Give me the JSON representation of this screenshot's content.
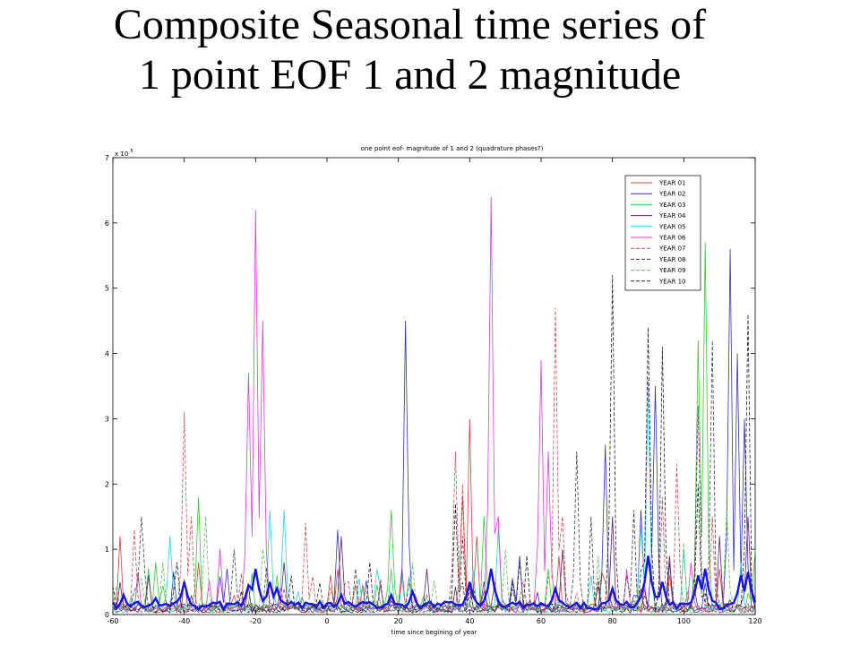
{
  "slide": {
    "title_line1": "Composite Seasonal time series of",
    "title_line2": "1 point EOF 1 and 2 magnitude"
  },
  "chart_data": {
    "type": "line",
    "title": "one point eof- magnitude of 1 and 2 (quadrature phases?)",
    "xlabel": "time since begining of year",
    "ylabel": "",
    "y_multiplier_label": "x 10",
    "y_multiplier_exponent": "5",
    "xlim": [
      -60,
      120
    ],
    "ylim": [
      0,
      7
    ],
    "xticks": [
      -60,
      -40,
      -20,
      0,
      20,
      40,
      60,
      80,
      100,
      120
    ],
    "yticks": [
      0,
      1,
      2,
      3,
      4,
      5,
      6,
      7
    ],
    "grid": false,
    "legend_position": "top-right",
    "series": [
      {
        "name": "YEAR 01",
        "color": "#d04040",
        "dash": "solid",
        "peaks": [
          [
            -58,
            1.2
          ],
          [
            -36,
            0.8
          ],
          [
            38,
            1.8
          ],
          [
            40,
            3.0
          ],
          [
            42,
            1.2
          ],
          [
            65,
            0.9
          ],
          [
            78,
            0.5
          ],
          [
            96,
            0.6
          ],
          [
            110,
            0.7
          ]
        ]
      },
      {
        "name": "YEAR 02",
        "color": "#3030b0",
        "dash": "solid",
        "peaks": [
          [
            -28,
            0.7
          ],
          [
            3,
            1.3
          ],
          [
            22,
            4.5
          ],
          [
            54,
            0.9
          ],
          [
            78,
            2.6
          ],
          [
            88,
            1.6
          ],
          [
            92,
            3.5
          ],
          [
            96,
            0.8
          ],
          [
            113,
            5.6
          ],
          [
            115,
            4.0
          ],
          [
            117,
            3.0
          ]
        ]
      },
      {
        "name": "YEAR 03",
        "color": "#40c040",
        "dash": "solid",
        "peaks": [
          [
            -48,
            0.8
          ],
          [
            -36,
            1.8
          ],
          [
            18,
            1.6
          ],
          [
            44,
            1.5
          ],
          [
            62,
            0.7
          ],
          [
            104,
            4.2
          ],
          [
            106,
            5.7
          ],
          [
            120,
            1.0
          ]
        ]
      },
      {
        "name": "YEAR 04",
        "color": "#602060",
        "dash": "solid",
        "peaks": [
          [
            -50,
            0.6
          ],
          [
            -12,
            0.8
          ],
          [
            4,
            1.2
          ],
          [
            28,
            0.7
          ],
          [
            66,
            1.0
          ],
          [
            80,
            1.5
          ],
          [
            96,
            0.9
          ],
          [
            110,
            1.2
          ],
          [
            118,
            1.5
          ]
        ]
      },
      {
        "name": "YEAR 05",
        "color": "#40c8e0",
        "dash": "solid",
        "peaks": [
          [
            -44,
            1.2
          ],
          [
            -16,
            1.6
          ],
          [
            -12,
            1.6
          ],
          [
            14,
            0.7
          ],
          [
            48,
            1.3
          ],
          [
            74,
            0.6
          ],
          [
            88,
            1.4
          ],
          [
            90,
            3.6
          ],
          [
            100,
            1.0
          ],
          [
            116,
            0.8
          ]
        ]
      },
      {
        "name": "YEAR 06",
        "color": "#d040d0",
        "dash": "solid",
        "peaks": [
          [
            -22,
            3.7
          ],
          [
            -20,
            6.2
          ],
          [
            -18,
            4.5
          ],
          [
            -30,
            1.0
          ],
          [
            46,
            6.4
          ],
          [
            48,
            1.5
          ],
          [
            60,
            3.9
          ],
          [
            62,
            2.5
          ],
          [
            84,
            0.7
          ],
          [
            102,
            0.8
          ]
        ]
      },
      {
        "name": "YEAR 07",
        "color": "#c05050",
        "dash": "dashed",
        "peaks": [
          [
            -54,
            1.3
          ],
          [
            -40,
            3.1
          ],
          [
            -38,
            1.5
          ],
          [
            -6,
            1.4
          ],
          [
            36,
            2.5
          ],
          [
            38,
            2.0
          ],
          [
            64,
            4.7
          ],
          [
            66,
            1.5
          ],
          [
            94,
            1.8
          ],
          [
            98,
            2.3
          ],
          [
            108,
            1.5
          ]
        ]
      },
      {
        "name": "YEAR 08",
        "color": "#404040",
        "dash": "dashed",
        "peaks": [
          [
            -52,
            1.5
          ],
          [
            -26,
            1.0
          ],
          [
            8,
            0.7
          ],
          [
            38,
            1.2
          ],
          [
            54,
            0.8
          ],
          [
            70,
            2.5
          ],
          [
            74,
            1.5
          ],
          [
            86,
            1.6
          ],
          [
            104,
            3.2
          ],
          [
            108,
            4.2
          ]
        ]
      },
      {
        "name": "YEAR 09",
        "color": "#60c060",
        "dash": "dashed",
        "peaks": [
          [
            -46,
            0.8
          ],
          [
            -34,
            1.5
          ],
          [
            -18,
            1.0
          ],
          [
            24,
            0.8
          ],
          [
            50,
            1.0
          ],
          [
            76,
            0.9
          ],
          [
            100,
            1.1
          ],
          [
            112,
            1.6
          ]
        ]
      },
      {
        "name": "YEAR 10",
        "color": "#202020",
        "dash": "dashed",
        "peaks": [
          [
            -42,
            0.8
          ],
          [
            -10,
            0.6
          ],
          [
            12,
            0.8
          ],
          [
            36,
            1.7
          ],
          [
            56,
            0.9
          ],
          [
            80,
            5.2
          ],
          [
            90,
            4.4
          ],
          [
            94,
            4.1
          ],
          [
            104,
            2.0
          ],
          [
            118,
            4.6
          ]
        ]
      }
    ],
    "composite_series": {
      "name": "",
      "color": "#1515e0",
      "peaks": [
        [
          -57,
          0.3
        ],
        [
          -48,
          0.25
        ],
        [
          -40,
          0.5
        ],
        [
          -22,
          0.45
        ],
        [
          -20,
          0.7
        ],
        [
          -16,
          0.5
        ],
        [
          -14,
          0.4
        ],
        [
          4,
          0.3
        ],
        [
          18,
          0.3
        ],
        [
          24,
          0.35
        ],
        [
          40,
          0.5
        ],
        [
          46,
          0.7
        ],
        [
          64,
          0.4
        ],
        [
          80,
          0.4
        ],
        [
          90,
          0.9
        ],
        [
          94,
          0.5
        ],
        [
          104,
          0.6
        ],
        [
          106,
          0.7
        ],
        [
          116,
          0.6
        ],
        [
          118,
          0.65
        ]
      ]
    }
  }
}
